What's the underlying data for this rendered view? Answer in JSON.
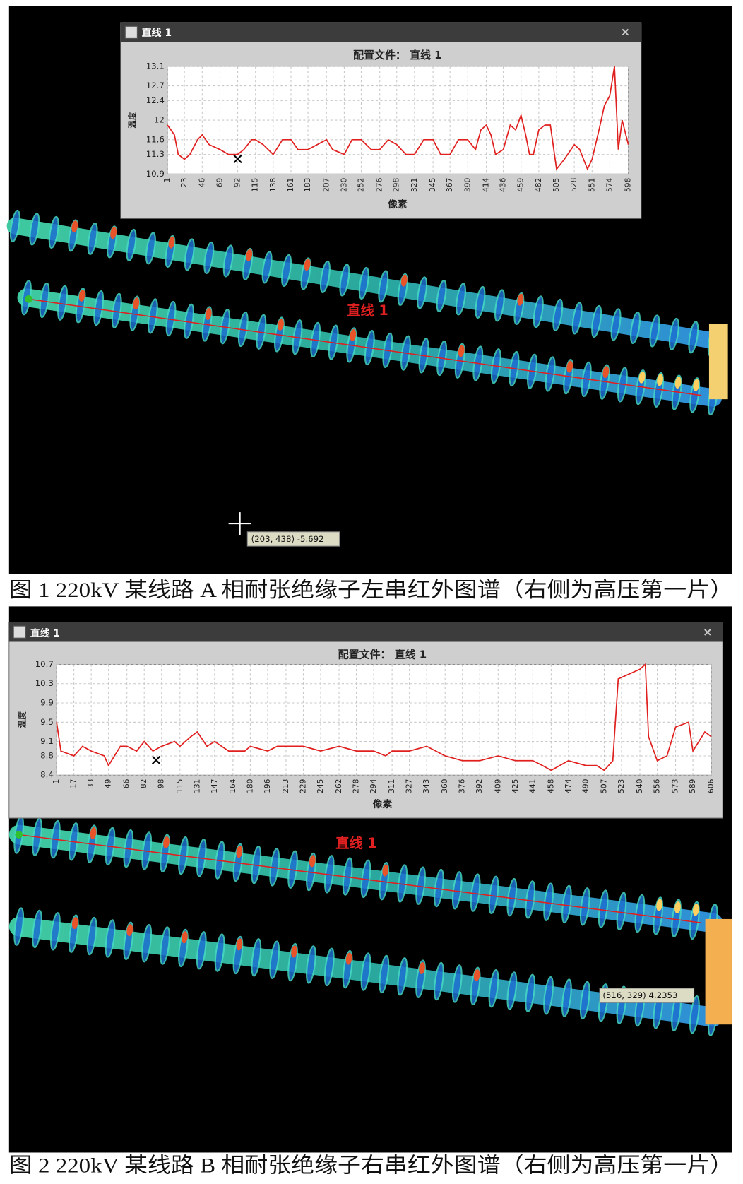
{
  "chart_data": [
    {
      "type": "line",
      "title": "配置文件： 直线 1",
      "x_label": "像素",
      "y_label": "温度",
      "color": "#e0201e",
      "grid": true,
      "xlim": [
        1,
        598
      ],
      "ylim": [
        10.9,
        13.1
      ],
      "xticks": [
        1,
        23,
        46,
        69,
        92,
        115,
        138,
        161,
        183,
        207,
        230,
        252,
        276,
        298,
        321,
        345,
        367,
        390,
        414,
        436,
        459,
        482,
        505,
        528,
        551,
        574,
        598
      ],
      "yticks": [
        10.9,
        11.3,
        11.6,
        12.0,
        12.4,
        12.7,
        13.1
      ],
      "x": [
        1,
        10,
        15,
        23,
        30,
        40,
        46,
        55,
        69,
        80,
        92,
        100,
        110,
        115,
        125,
        138,
        150,
        161,
        170,
        183,
        195,
        207,
        215,
        230,
        240,
        252,
        265,
        276,
        287,
        298,
        310,
        321,
        333,
        345,
        355,
        367,
        378,
        390,
        400,
        407,
        414,
        420,
        426,
        436,
        445,
        452,
        459,
        465,
        470,
        475,
        482,
        490,
        497,
        505,
        515,
        528,
        535,
        545,
        551,
        560,
        567,
        574,
        580,
        585,
        590,
        598
      ],
      "values": [
        11.9,
        11.7,
        11.3,
        11.2,
        11.3,
        11.6,
        11.7,
        11.5,
        11.4,
        11.3,
        11.3,
        11.4,
        11.6,
        11.6,
        11.5,
        11.3,
        11.6,
        11.6,
        11.4,
        11.4,
        11.5,
        11.6,
        11.4,
        11.3,
        11.6,
        11.6,
        11.4,
        11.4,
        11.6,
        11.5,
        11.3,
        11.3,
        11.6,
        11.6,
        11.3,
        11.3,
        11.6,
        11.6,
        11.4,
        11.8,
        11.9,
        11.7,
        11.3,
        11.4,
        11.9,
        11.8,
        12.1,
        11.7,
        11.3,
        11.3,
        11.8,
        11.9,
        11.9,
        11.0,
        11.2,
        11.5,
        11.4,
        11.0,
        11.2,
        11.8,
        12.3,
        12.5,
        13.1,
        11.4,
        12.0,
        11.5
      ]
    },
    {
      "type": "line",
      "title": "配置文件： 直线 1",
      "x_label": "像素",
      "y_label": "温度",
      "color": "#e0201e",
      "grid": true,
      "xlim": [
        1,
        606
      ],
      "ylim": [
        8.4,
        10.7
      ],
      "xticks": [
        1,
        17,
        33,
        49,
        66,
        82,
        98,
        115,
        131,
        147,
        164,
        180,
        196,
        213,
        229,
        245,
        262,
        278,
        294,
        311,
        327,
        343,
        360,
        376,
        392,
        409,
        425,
        441,
        458,
        474,
        490,
        507,
        523,
        540,
        556,
        573,
        589,
        606
      ],
      "yticks": [
        8.4,
        8.8,
        9.1,
        9.5,
        9.9,
        10.3,
        10.7
      ],
      "x": [
        1,
        5,
        17,
        25,
        33,
        45,
        49,
        60,
        66,
        75,
        82,
        90,
        98,
        110,
        115,
        125,
        131,
        140,
        147,
        160,
        164,
        175,
        180,
        196,
        205,
        213,
        229,
        245,
        262,
        278,
        294,
        305,
        311,
        327,
        343,
        360,
        376,
        392,
        409,
        425,
        441,
        450,
        458,
        474,
        490,
        500,
        507,
        515,
        520,
        530,
        540,
        545,
        548,
        556,
        565,
        573,
        585,
        589,
        600,
        606
      ],
      "values": [
        9.5,
        8.9,
        8.8,
        9.0,
        8.9,
        8.8,
        8.6,
        9.0,
        9.0,
        8.9,
        9.1,
        8.9,
        9.0,
        9.1,
        9.0,
        9.2,
        9.3,
        9.0,
        9.1,
        8.9,
        8.9,
        8.9,
        9.0,
        8.9,
        9.0,
        9.0,
        9.0,
        8.9,
        9.0,
        8.9,
        8.9,
        8.8,
        8.9,
        8.9,
        9.0,
        8.8,
        8.7,
        8.7,
        8.8,
        8.7,
        8.7,
        8.6,
        8.5,
        8.7,
        8.6,
        8.6,
        8.5,
        8.7,
        10.4,
        10.5,
        10.6,
        10.7,
        9.2,
        8.7,
        8.8,
        9.4,
        9.5,
        8.9,
        9.3,
        9.2
      ]
    }
  ],
  "figures": [
    {
      "window_title": "直线 1",
      "close": "×",
      "line_label": "直线 1",
      "tooltip": "(203, 438) -5.692",
      "caption": "图 1 220kV 某线路 A 相耐张绝缘子左串红外图谱（右侧为高压第一片）"
    },
    {
      "window_title": "直线 1",
      "close": "×",
      "line_label": "直线 1",
      "tooltip": "(516, 329) 4.2353",
      "caption": "图 2 220kV 某线路 B 相耐张绝缘子右串红外图谱（右侧为高压第一片）"
    }
  ]
}
